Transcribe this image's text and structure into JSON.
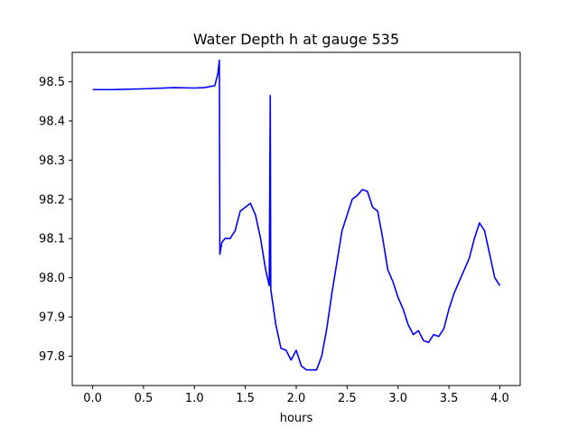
{
  "chart_data": {
    "type": "line",
    "title": "Water Depth h at gauge 535",
    "xlabel": "hours",
    "ylabel": "",
    "xlim": [
      -0.2,
      4.2
    ],
    "ylim": [
      97.725,
      98.575
    ],
    "xticks": [
      0.0,
      0.5,
      1.0,
      1.5,
      2.0,
      2.5,
      3.0,
      3.5,
      4.0
    ],
    "xtick_labels": [
      "0.0",
      "0.5",
      "1.0",
      "1.5",
      "2.0",
      "2.5",
      "3.0",
      "3.5",
      "4.0"
    ],
    "yticks": [
      97.8,
      97.9,
      98.0,
      98.1,
      98.2,
      98.3,
      98.4,
      98.5
    ],
    "ytick_labels": [
      "97.8",
      "97.9",
      "98.0",
      "98.1",
      "98.2",
      "98.3",
      "98.4",
      "98.5"
    ],
    "grid": false,
    "series": [
      {
        "color": "#0000ff",
        "points": [
          [
            0.0,
            98.48
          ],
          [
            0.2,
            98.48
          ],
          [
            0.5,
            98.482
          ],
          [
            0.8,
            98.485
          ],
          [
            1.0,
            98.484
          ],
          [
            1.1,
            98.485
          ],
          [
            1.2,
            98.49
          ],
          [
            1.23,
            98.52
          ],
          [
            1.245,
            98.555
          ],
          [
            1.25,
            98.06
          ],
          [
            1.27,
            98.09
          ],
          [
            1.3,
            98.1
          ],
          [
            1.35,
            98.1
          ],
          [
            1.4,
            98.12
          ],
          [
            1.45,
            98.17
          ],
          [
            1.5,
            98.18
          ],
          [
            1.55,
            98.19
          ],
          [
            1.6,
            98.16
          ],
          [
            1.65,
            98.1
          ],
          [
            1.7,
            98.02
          ],
          [
            1.735,
            97.98
          ],
          [
            1.745,
            98.465
          ],
          [
            1.75,
            97.97
          ],
          [
            1.8,
            97.88
          ],
          [
            1.85,
            97.82
          ],
          [
            1.9,
            97.815
          ],
          [
            1.95,
            97.79
          ],
          [
            2.0,
            97.815
          ],
          [
            2.05,
            97.775
          ],
          [
            2.1,
            97.765
          ],
          [
            2.15,
            97.765
          ],
          [
            2.2,
            97.765
          ],
          [
            2.25,
            97.8
          ],
          [
            2.3,
            97.87
          ],
          [
            2.35,
            97.96
          ],
          [
            2.4,
            98.04
          ],
          [
            2.45,
            98.12
          ],
          [
            2.5,
            98.16
          ],
          [
            2.55,
            98.2
          ],
          [
            2.6,
            98.21
          ],
          [
            2.65,
            98.225
          ],
          [
            2.7,
            98.22
          ],
          [
            2.75,
            98.18
          ],
          [
            2.8,
            98.17
          ],
          [
            2.85,
            98.1
          ],
          [
            2.9,
            98.02
          ],
          [
            2.95,
            97.99
          ],
          [
            3.0,
            97.95
          ],
          [
            3.05,
            97.92
          ],
          [
            3.1,
            97.88
          ],
          [
            3.15,
            97.855
          ],
          [
            3.2,
            97.865
          ],
          [
            3.25,
            97.84
          ],
          [
            3.3,
            97.835
          ],
          [
            3.35,
            97.855
          ],
          [
            3.4,
            97.85
          ],
          [
            3.45,
            97.87
          ],
          [
            3.5,
            97.92
          ],
          [
            3.55,
            97.96
          ],
          [
            3.6,
            97.99
          ],
          [
            3.65,
            98.02
          ],
          [
            3.7,
            98.05
          ],
          [
            3.75,
            98.1
          ],
          [
            3.8,
            98.14
          ],
          [
            3.85,
            98.12
          ],
          [
            3.9,
            98.06
          ],
          [
            3.95,
            98.0
          ],
          [
            4.0,
            97.98
          ]
        ]
      }
    ]
  }
}
